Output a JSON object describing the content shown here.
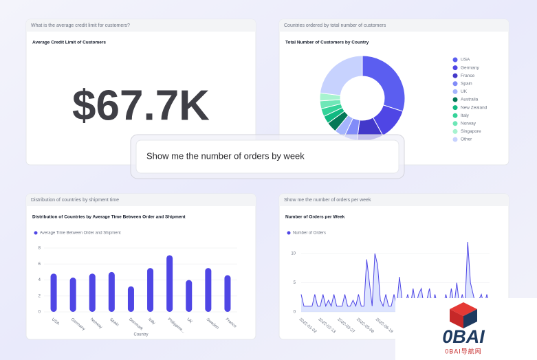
{
  "kpi": {
    "header": "What is the average credit limit for customers?",
    "title": "Average Credit Limit of Customers",
    "value": "$67.7K"
  },
  "prompt": "Show me the number of orders by week",
  "watermark": {
    "logo": "0BAI",
    "caption": "0BAI导航网"
  },
  "chart_data": [
    {
      "type": "pie",
      "panel_header": "Countries ordered by total number of customers",
      "title": "Total Number of Customers by Country",
      "categories": [
        "USA",
        "Germany",
        "France",
        "Spain",
        "UK",
        "Australia",
        "New Zealand",
        "Italy",
        "Norway",
        "Singapore",
        "Other"
      ],
      "values": [
        30,
        12,
        10,
        5,
        4,
        4,
        3,
        3,
        3,
        3,
        23
      ],
      "colors": [
        "#5b5ef0",
        "#4f46e5",
        "#4338ca",
        "#818cf8",
        "#a5b4fc",
        "#047857",
        "#10b981",
        "#34d399",
        "#6ee7b7",
        "#a7f3d0",
        "#c7d2fe"
      ]
    },
    {
      "type": "bar",
      "panel_header": "Distribution of countries by shipment time",
      "title": "Distribution of Countries by Average Time Between Order and Shipment",
      "legend": "Average Time Between Order and Shipment",
      "xlabel": "Country",
      "categories": [
        "USA",
        "Germany",
        "Norway",
        "Spain",
        "Denmark",
        "Italy",
        "Philippine...",
        "UK",
        "Sweden",
        "France"
      ],
      "values": [
        4.8,
        4.3,
        4.8,
        5,
        3.2,
        5.5,
        7.1,
        4,
        5.5,
        4.6
      ],
      "color": "#4f46e5",
      "ylim": [
        0,
        8
      ],
      "yticks": [
        0,
        2,
        4,
        6,
        8
      ]
    },
    {
      "type": "line",
      "panel_header": "Show me the number of orders per week",
      "title": "Number of Orders per Week",
      "legend": "Number of Orders",
      "categories": [
        "2022-01-02",
        null,
        null,
        null,
        null,
        null,
        null,
        "2022-02-13",
        null,
        null,
        null,
        null,
        null,
        null,
        "2022-03-27",
        null,
        null,
        null,
        null,
        null,
        null,
        "2022-05-08",
        null,
        null,
        null,
        null,
        null,
        null,
        "2022-06-19",
        null,
        null,
        null,
        null,
        null,
        null,
        null,
        null,
        null,
        null,
        null,
        null,
        null,
        null,
        null,
        null,
        null,
        null,
        null,
        null,
        null,
        null,
        null,
        null,
        null,
        null,
        null,
        null,
        null,
        null,
        null,
        null,
        null,
        null,
        null,
        null,
        null,
        null,
        null,
        null,
        null
      ],
      "values": [
        3,
        1,
        1,
        1,
        1,
        3,
        1,
        1,
        3,
        1,
        2,
        1,
        3,
        1,
        1,
        1,
        3,
        1,
        1,
        2,
        1,
        3,
        1,
        1,
        9,
        5,
        1,
        10,
        8,
        2,
        1,
        3,
        1,
        1,
        3,
        1,
        6,
        2,
        1,
        3,
        1,
        4,
        1,
        3,
        4,
        1,
        2,
        4,
        1,
        3,
        1,
        2,
        1,
        3,
        1,
        4,
        1,
        5,
        1,
        3,
        1,
        12,
        5,
        3,
        1,
        2,
        3,
        1,
        3,
        1
      ],
      "color": "#4f46e5",
      "ylim": [
        0,
        12
      ],
      "yticks": [
        0,
        5,
        10
      ]
    }
  ]
}
